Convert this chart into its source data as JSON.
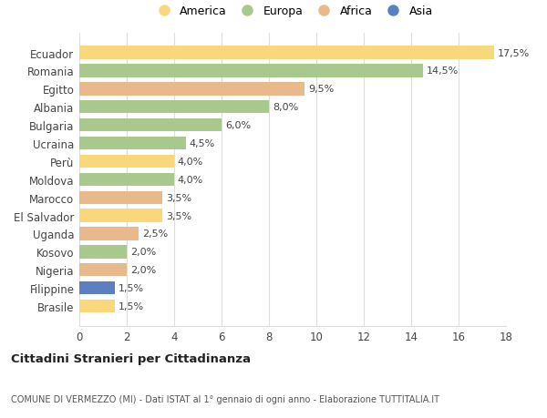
{
  "countries": [
    "Ecuador",
    "Romania",
    "Egitto",
    "Albania",
    "Bulgaria",
    "Ucraina",
    "Perù",
    "Moldova",
    "Marocco",
    "El Salvador",
    "Uganda",
    "Kosovo",
    "Nigeria",
    "Filippine",
    "Brasile"
  ],
  "values": [
    17.5,
    14.5,
    9.5,
    8.0,
    6.0,
    4.5,
    4.0,
    4.0,
    3.5,
    3.5,
    2.5,
    2.0,
    2.0,
    1.5,
    1.5
  ],
  "continents": [
    "America",
    "Europa",
    "Africa",
    "Europa",
    "Europa",
    "Europa",
    "America",
    "Europa",
    "Africa",
    "America",
    "Africa",
    "Europa",
    "Africa",
    "Asia",
    "America"
  ],
  "colors": {
    "America": "#F9D87B",
    "Europa": "#A8C98B",
    "Africa": "#E8B98A",
    "Asia": "#5B7FC1"
  },
  "legend_order": [
    "America",
    "Europa",
    "Africa",
    "Asia"
  ],
  "title": "Cittadini Stranieri per Cittadinanza",
  "subtitle": "COMUNE DI VERMEZZO (MI) - Dati ISTAT al 1° gennaio di ogni anno - Elaborazione TUTTITALIA.IT",
  "xlim": [
    0,
    18
  ],
  "xticks": [
    0,
    2,
    4,
    6,
    8,
    10,
    12,
    14,
    16,
    18
  ],
  "background_color": "#ffffff",
  "grid_color": "#dddddd"
}
